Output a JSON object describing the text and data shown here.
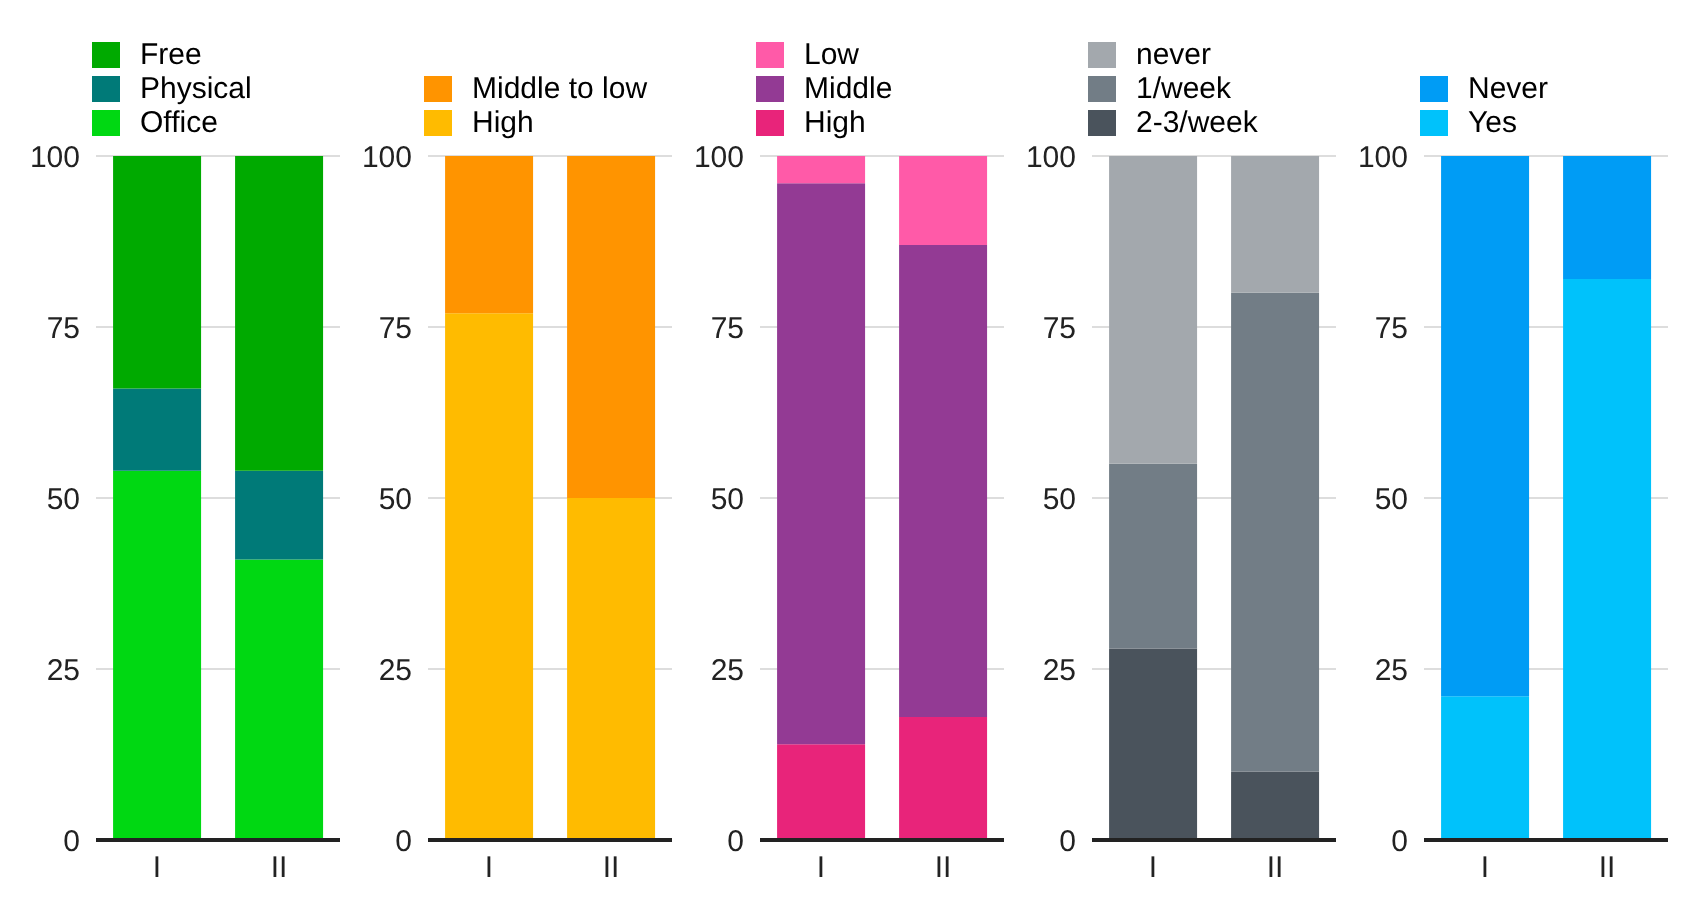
{
  "chart_data": [
    {
      "type": "bar",
      "stacked": true,
      "categories": [
        "I",
        "II"
      ],
      "ylim": [
        0,
        100
      ],
      "yticks": [
        0,
        25,
        50,
        75,
        100
      ],
      "grid": "y",
      "legend": "top left",
      "series": [
        {
          "name": "Office",
          "color": "#00d812",
          "values": [
            54,
            41
          ]
        },
        {
          "name": "Physical",
          "color": "#007a78",
          "values": [
            12,
            13
          ]
        },
        {
          "name": "Free",
          "color": "#00aa00",
          "values": [
            34,
            46
          ]
        }
      ]
    },
    {
      "type": "bar",
      "stacked": true,
      "categories": [
        "I",
        "II"
      ],
      "ylim": [
        0,
        100
      ],
      "yticks": [
        0,
        25,
        50,
        75,
        100
      ],
      "grid": "y",
      "legend": "top left",
      "series": [
        {
          "name": "High",
          "color": "#ffbb00",
          "values": [
            77,
            50
          ]
        },
        {
          "name": "Middle to low",
          "color": "#ff9400",
          "values": [
            23,
            50
          ]
        }
      ]
    },
    {
      "type": "bar",
      "stacked": true,
      "categories": [
        "I",
        "II"
      ],
      "ylim": [
        0,
        100
      ],
      "yticks": [
        0,
        25,
        50,
        75,
        100
      ],
      "grid": "y",
      "legend": "top left",
      "series": [
        {
          "name": "High",
          "color": "#e8247a",
          "values": [
            14,
            18
          ]
        },
        {
          "name": "Middle",
          "color": "#933a94",
          "values": [
            82,
            69
          ]
        },
        {
          "name": "Low",
          "color": "#ff5aa8",
          "values": [
            4,
            13
          ]
        }
      ]
    },
    {
      "type": "bar",
      "stacked": true,
      "categories": [
        "I",
        "II"
      ],
      "ylim": [
        0,
        100
      ],
      "yticks": [
        0,
        25,
        50,
        75,
        100
      ],
      "grid": "y",
      "legend": "top left",
      "series": [
        {
          "name": "2-3/week",
          "color": "#4a535c",
          "values": [
            28,
            10
          ]
        },
        {
          "name": "1/week",
          "color": "#727d86",
          "values": [
            27,
            70
          ]
        },
        {
          "name": "never",
          "color": "#a3a8ad",
          "values": [
            45,
            20
          ]
        }
      ]
    },
    {
      "type": "bar",
      "stacked": true,
      "categories": [
        "I",
        "II"
      ],
      "ylim": [
        0,
        100
      ],
      "yticks": [
        0,
        25,
        50,
        75,
        100
      ],
      "grid": "y",
      "legend": "top left",
      "series": [
        {
          "name": "Yes",
          "color": "#00c2fb",
          "values": [
            21,
            82
          ]
        },
        {
          "name": "Never",
          "color": "#009cf5",
          "values": [
            79,
            18
          ]
        }
      ]
    }
  ]
}
